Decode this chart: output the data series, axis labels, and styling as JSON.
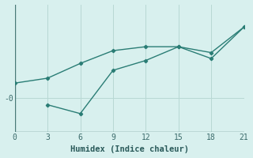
{
  "xlabel": "Humidex (Indice chaleur)",
  "background_color": "#d8f0ee",
  "line_color": "#2a7d75",
  "grid_color": "#b8d8d4",
  "xticks": [
    0,
    3,
    6,
    9,
    12,
    15,
    18,
    21
  ],
  "ytick_val": 0,
  "ytick_label": "-0",
  "line1_x": [
    0,
    3,
    6,
    9,
    12,
    15,
    18,
    21
  ],
  "line1_y": [
    1.5,
    2.0,
    3.5,
    4.8,
    5.2,
    5.2,
    4.6,
    7.2
  ],
  "line2_x": [
    3,
    6,
    9,
    12,
    15,
    18,
    21
  ],
  "line2_y": [
    -0.7,
    -1.6,
    2.8,
    3.8,
    5.2,
    4.0,
    7.2
  ],
  "xlim": [
    0,
    21
  ],
  "ylim": [
    -3.5,
    9.5
  ],
  "zero_y": 0
}
